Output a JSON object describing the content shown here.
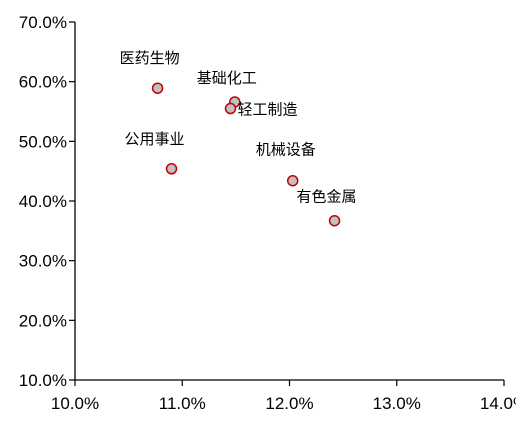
{
  "chart_data": {
    "type": "scatter",
    "title": "",
    "xlabel": "",
    "ylabel": "",
    "xlim": [
      0.1,
      0.14
    ],
    "ylim": [
      0.1,
      0.7
    ],
    "x_ticks": [
      0.1,
      0.11,
      0.12,
      0.13,
      0.14
    ],
    "y_ticks": [
      0.1,
      0.2,
      0.3,
      0.4,
      0.5,
      0.6,
      0.7
    ],
    "x_tick_labels": [
      "10.0%",
      "11.0%",
      "12.0%",
      "13.0%",
      "14.0%"
    ],
    "y_tick_labels": [
      "10.0%",
      "20.0%",
      "30.0%",
      "40.0%",
      "50.0%",
      "60.0%",
      "70.0%"
    ],
    "grid": false,
    "legend": "none",
    "marker_fill": "#c0c0c0",
    "marker_stroke": "#c00000",
    "points": [
      {
        "label": "医药生物",
        "x": 0.1077,
        "y": 0.589
      },
      {
        "label": "基础化工",
        "x": 0.1149,
        "y": 0.566
      },
      {
        "label": "轻工制造",
        "x": 0.1145,
        "y": 0.555
      },
      {
        "label": "公用事业",
        "x": 0.109,
        "y": 0.454
      },
      {
        "label": "机械设备",
        "x": 0.1203,
        "y": 0.434
      },
      {
        "label": "有色金属",
        "x": 0.1242,
        "y": 0.367
      }
    ]
  }
}
